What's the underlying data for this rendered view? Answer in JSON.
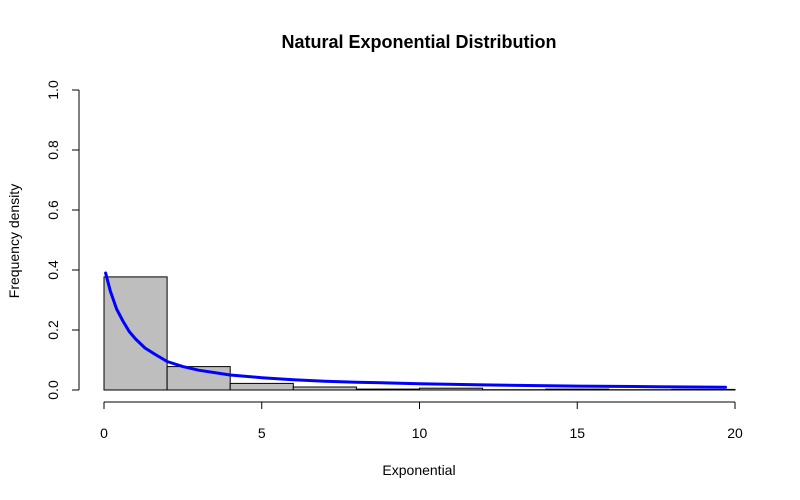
{
  "chart_data": {
    "type": "bar",
    "title": "Natural Exponential Distribution",
    "xlabel": "Exponential",
    "ylabel": "Frequency density",
    "xlim": [
      0,
      20
    ],
    "ylim": [
      0,
      1
    ],
    "x_ticks": [
      "0",
      "5",
      "10",
      "15",
      "20"
    ],
    "y_ticks": [
      "0.0",
      "0.2",
      "0.4",
      "0.6",
      "0.8",
      "1.0"
    ],
    "grid": false,
    "bar_color": "#bebebe",
    "histogram": {
      "bins": [
        {
          "from": 0,
          "to": 2,
          "density": 0.377
        },
        {
          "from": 2,
          "to": 4,
          "density": 0.078
        },
        {
          "from": 4,
          "to": 6,
          "density": 0.022
        },
        {
          "from": 6,
          "to": 8,
          "density": 0.01
        },
        {
          "from": 8,
          "to": 10,
          "density": 0.003
        },
        {
          "from": 10,
          "to": 12,
          "density": 0.006
        },
        {
          "from": 12,
          "to": 14,
          "density": 0.001
        },
        {
          "from": 14,
          "to": 16,
          "density": 0.003
        },
        {
          "from": 16,
          "to": 18,
          "density": 0.001
        },
        {
          "from": 18,
          "to": 20,
          "density": 0.002
        }
      ]
    },
    "density_curve": {
      "color": "#0000ff",
      "x": [
        0.05,
        0.2,
        0.4,
        0.6,
        0.8,
        1.0,
        1.3,
        1.6,
        2.0,
        2.5,
        3.0,
        4.0,
        5.0,
        6.0,
        7.0,
        8.0,
        10.0,
        12.0,
        15.0,
        17.5,
        19.7
      ],
      "y": [
        0.39,
        0.33,
        0.27,
        0.23,
        0.195,
        0.17,
        0.14,
        0.12,
        0.095,
        0.078,
        0.066,
        0.05,
        0.041,
        0.034,
        0.029,
        0.026,
        0.021,
        0.017,
        0.013,
        0.011,
        0.009
      ]
    }
  }
}
